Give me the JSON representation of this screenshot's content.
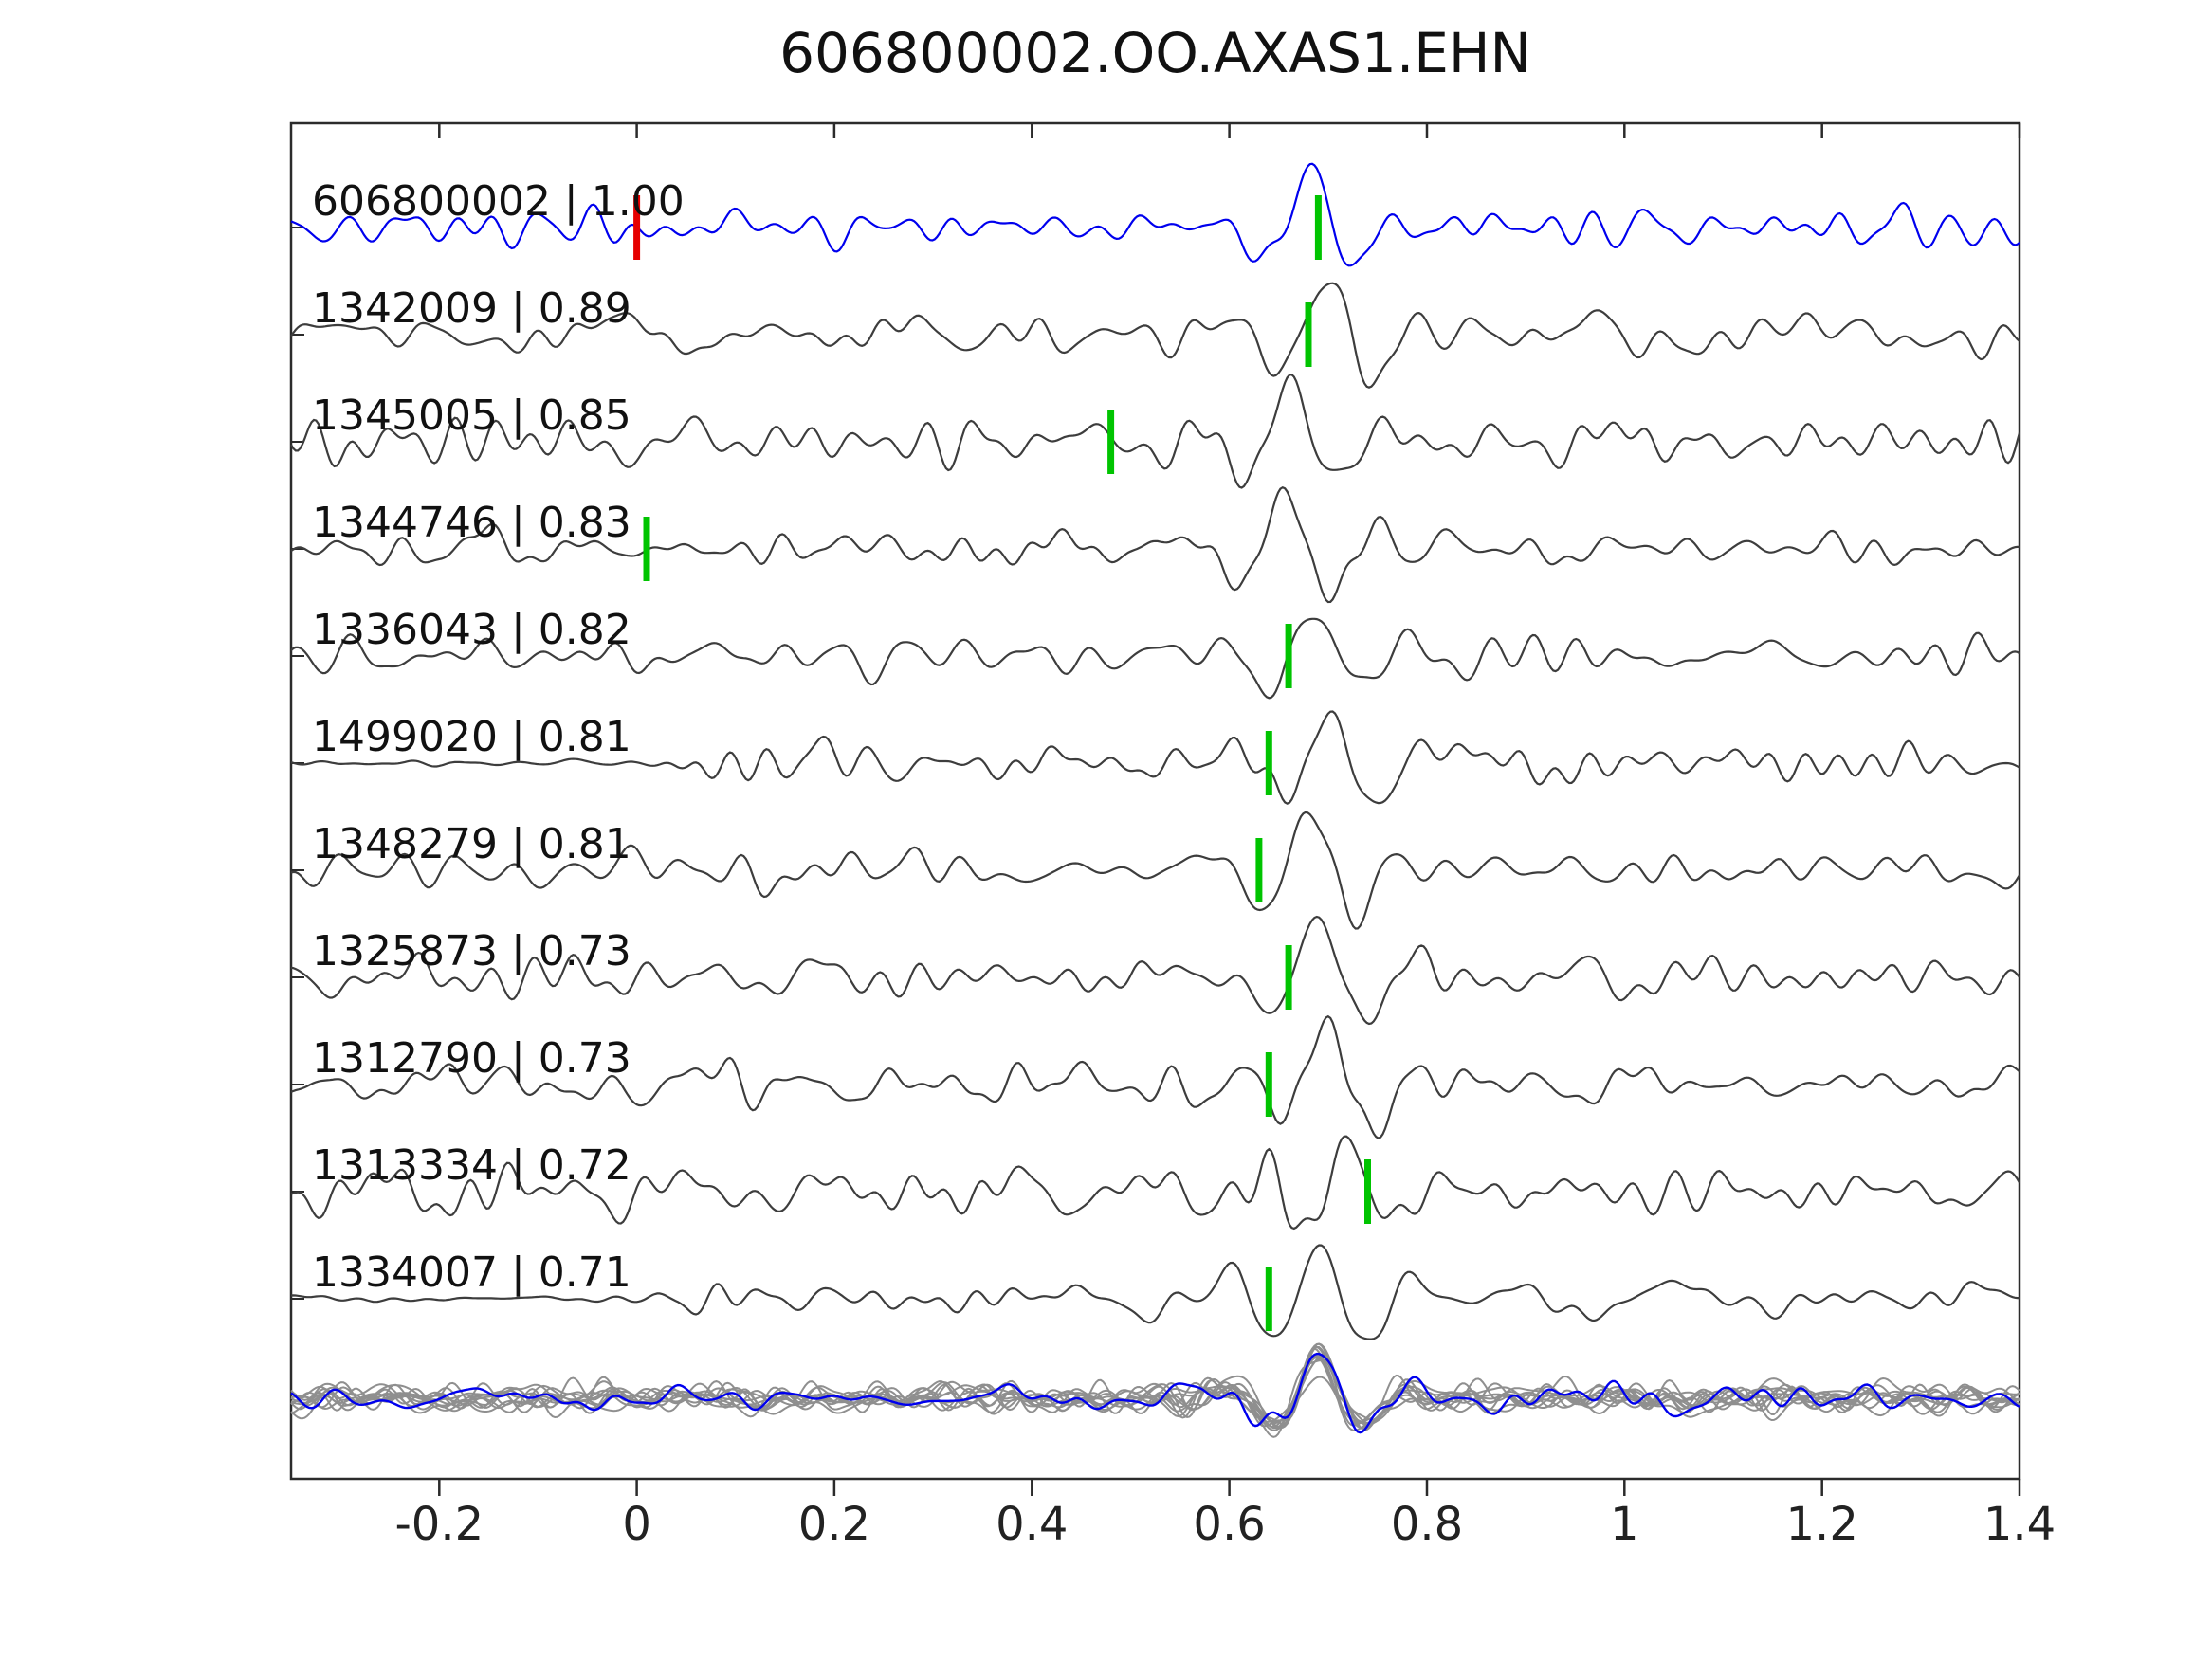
{
  "title": "606800002.OO.AXAS1.EHN",
  "chart_data": {
    "type": "line",
    "title": "606800002.OO.AXAS1.EHN",
    "xlabel": "",
    "ylabel": "",
    "xlim": [
      -0.35,
      1.4
    ],
    "grid": false,
    "legend": null,
    "x_ticks": [
      -0.2,
      0,
      0.2,
      0.4,
      0.6,
      0.8,
      1,
      1.2,
      1.4
    ],
    "x_tick_labels": [
      "-0.2",
      "0",
      "0.2",
      "0.4",
      "0.6",
      "0.8",
      "1",
      "1.2",
      "1.4"
    ],
    "colors": {
      "template_trace": "#0000ee",
      "detection_trace": "#3d3d3d",
      "pick_marker": "#00c400",
      "template_pick_marker": "#e60000",
      "overlay_gray": "#8f8f8f",
      "axis": "#2b2b2b"
    },
    "traces": [
      {
        "label": "606800002 | 1.00",
        "id": "606800002",
        "correlation": 1.0,
        "color": "#0000ee",
        "picks": [
          {
            "time": 0.0,
            "color": "#e60000"
          },
          {
            "time": 0.69,
            "color": "#00c400"
          }
        ]
      },
      {
        "label": "1342009 | 0.89",
        "id": "1342009",
        "correlation": 0.89,
        "color": "#3d3d3d",
        "picks": [
          {
            "time": 0.68,
            "color": "#00c400"
          }
        ]
      },
      {
        "label": "1345005 | 0.85",
        "id": "1345005",
        "correlation": 0.85,
        "color": "#3d3d3d",
        "picks": [
          {
            "time": 0.48,
            "color": "#00c400"
          }
        ]
      },
      {
        "label": "1344746 | 0.83",
        "id": "1344746",
        "correlation": 0.83,
        "color": "#3d3d3d",
        "picks": [
          {
            "time": 0.01,
            "color": "#00c400"
          }
        ]
      },
      {
        "label": "1336043 | 0.82",
        "id": "1336043",
        "correlation": 0.82,
        "color": "#3d3d3d",
        "picks": [
          {
            "time": 0.66,
            "color": "#00c400"
          }
        ]
      },
      {
        "label": "1499020 | 0.81",
        "id": "1499020",
        "correlation": 0.81,
        "color": "#3d3d3d",
        "picks": [
          {
            "time": 0.64,
            "color": "#00c400"
          }
        ]
      },
      {
        "label": "1348279 | 0.81",
        "id": "1348279",
        "correlation": 0.81,
        "color": "#3d3d3d",
        "picks": [
          {
            "time": 0.63,
            "color": "#00c400"
          }
        ]
      },
      {
        "label": "1325873 | 0.73",
        "id": "1325873",
        "correlation": 0.73,
        "color": "#3d3d3d",
        "picks": [
          {
            "time": 0.66,
            "color": "#00c400"
          }
        ]
      },
      {
        "label": "1312790 | 0.73",
        "id": "1312790",
        "correlation": 0.73,
        "color": "#3d3d3d",
        "picks": [
          {
            "time": 0.64,
            "color": "#00c400"
          }
        ]
      },
      {
        "label": "1313334 | 0.72",
        "id": "1313334",
        "correlation": 0.72,
        "color": "#3d3d3d",
        "picks": [
          {
            "time": 0.74,
            "color": "#00c400"
          }
        ]
      },
      {
        "label": "1334007 | 0.71",
        "id": "1334007",
        "correlation": 0.71,
        "color": "#3d3d3d",
        "picks": [
          {
            "time": 0.64,
            "color": "#00c400"
          }
        ]
      }
    ],
    "overlay_row": {
      "description": "aligned detection traces overlaid in gray with template trace in blue",
      "gray_trace_count": 11,
      "gray_color": "#8f8f8f",
      "highlight_color": "#0000ee"
    }
  }
}
